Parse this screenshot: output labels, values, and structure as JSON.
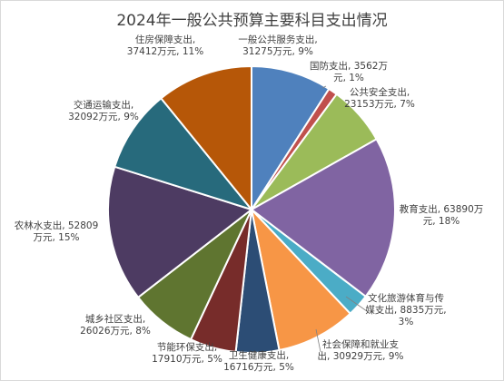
{
  "chart_data": {
    "type": "pie",
    "title": "2024年一般公共预算主要科目支出情况",
    "categories": [
      "一般公共服务支出",
      "国防支出",
      "公共安全支出",
      "教育支出",
      "文化旅游体育与传媒支出",
      "社会保障和就业支出",
      "卫生健康支出",
      "节能环保支出",
      "城乡社区支出",
      "农林水支出",
      "交通运输支出",
      "住房保障支出"
    ],
    "values": [
      31275,
      3562,
      23153,
      63890,
      8835,
      30929,
      16716,
      17910,
      26026,
      52809,
      32092,
      37412
    ],
    "unit": "万元",
    "colors": [
      "#4f81bd",
      "#c0504d",
      "#9bbb59",
      "#8064a2",
      "#4bacc6",
      "#f79646",
      "#2c4d75",
      "#772c2a",
      "#5f7530",
      "#4d3b62",
      "#276a7c",
      "#b65708"
    ],
    "labels": [
      [
        "一般公共服务支出,",
        "31275万元, 9%"
      ],
      [
        "国防支出, 3562万",
        "元, 1%"
      ],
      [
        "公共安全支出,",
        "23153万元, 7%"
      ],
      [
        "教育支出, 63890万",
        "元, 18%"
      ],
      [
        "文化旅游体育与传",
        "媒支出, 8835万元,",
        "3%"
      ],
      [
        "社会保障和就业支",
        "出, 30929万元, 9%"
      ],
      [
        "卫生健康支出,",
        "16716万元, 5%"
      ],
      [
        "节能环保支出,",
        "17910万元, 5%"
      ],
      [
        "城乡社区支出,",
        "26026万元, 8%"
      ],
      [
        "农林水支出, 52809",
        "万元, 15%"
      ],
      [
        "交通运输支出,",
        "32092万元, 9%"
      ],
      [
        "住房保障支出,",
        "37412万元, 11%"
      ]
    ]
  }
}
